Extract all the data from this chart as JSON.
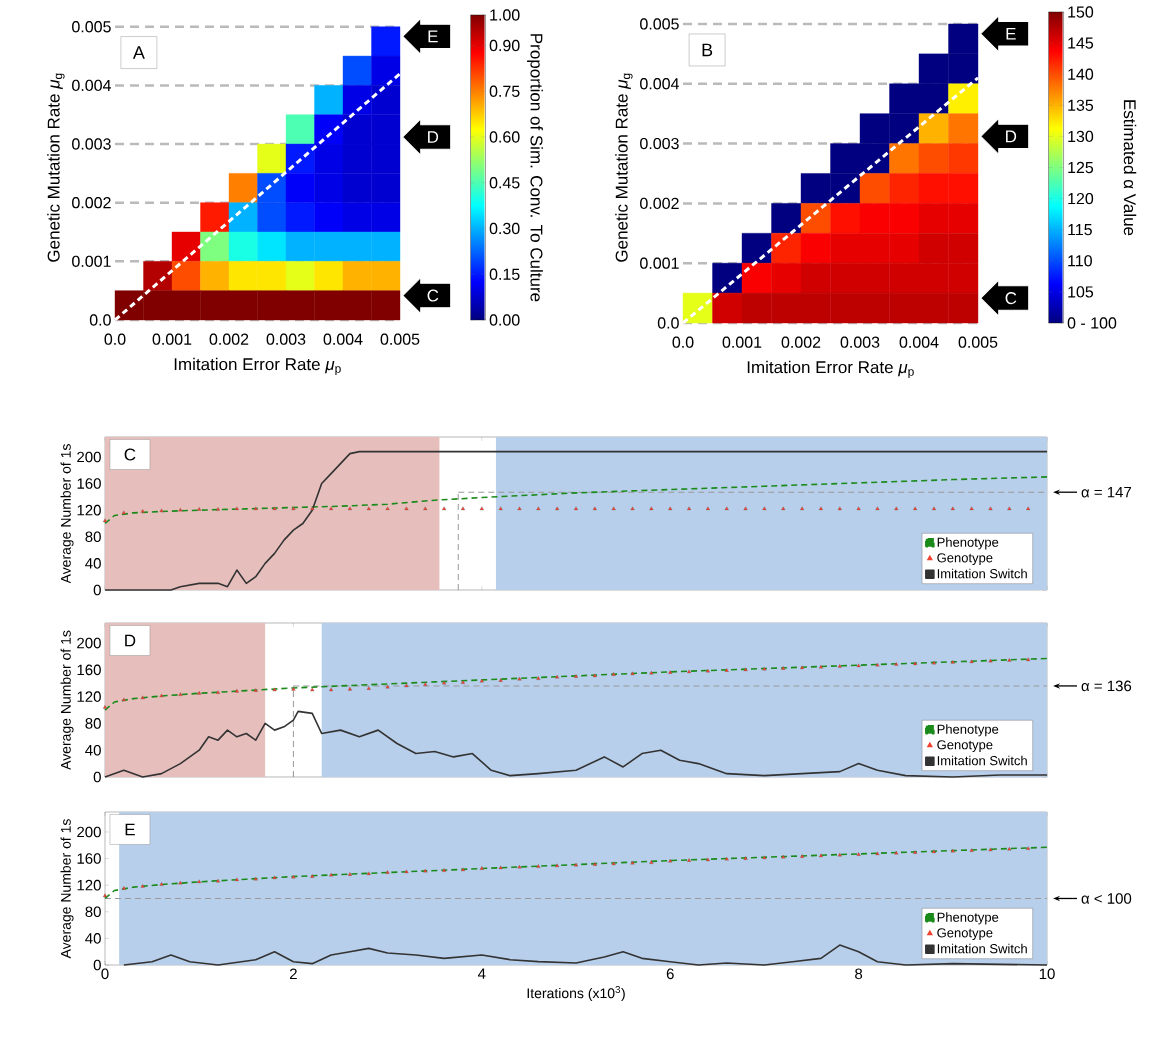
{
  "chart_data": [
    {
      "type": "heatmap",
      "title": "A",
      "xlabel": "Imitation Error Rate *μ*$_{p}$",
      "ylabel": "Genetic Mutation Rate *μ*$_{g}$",
      "clabel": "Proportion of Sim. Conv. To Culture",
      "xlim": [
        0,
        0.005
      ],
      "ylim": [
        0,
        0.005
      ],
      "xticks": [
        {
          "value": 0,
          "label": "0.0"
        },
        0.001,
        0.002,
        0.003,
        0.004,
        0.005
      ],
      "yticks": [
        {
          "value": 0,
          "label": "0.0"
        },
        0.001,
        0.002,
        0.003,
        0.004,
        0.005
      ],
      "clim": [
        0,
        1
      ],
      "cticks": [
        {
          "value": 0,
          "label": "0.00"
        },
        {
          "value": 0.15,
          "label": "0.15"
        },
        {
          "value": 0.3,
          "label": "0.30"
        },
        {
          "value": 0.45,
          "label": "0.45"
        },
        {
          "value": 0.6,
          "label": "0.60"
        },
        {
          "value": 0.75,
          "label": "0.75"
        },
        {
          "value": 0.9,
          "label": "0.90"
        },
        {
          "value": 1,
          "label": "1.00"
        }
      ],
      "x": [
        0.00025,
        0.00075,
        0.00125,
        0.00175,
        0.00225,
        0.00275,
        0.00325,
        0.00375,
        0.00425,
        0.00475
      ],
      "y": [
        0.00475,
        0.00425,
        0.00375,
        0.00325,
        0.00275,
        0.00225,
        0.00175,
        0.00125,
        0.00075,
        0.00025
      ],
      "cells": [
        [
          null,
          null,
          null,
          null,
          null,
          null,
          null,
          null,
          null,
          0.15
        ],
        [
          null,
          null,
          null,
          null,
          null,
          null,
          null,
          null,
          0.2,
          0.1
        ],
        [
          null,
          null,
          null,
          null,
          null,
          null,
          null,
          0.3,
          0.1,
          0.08
        ],
        [
          null,
          null,
          null,
          null,
          null,
          null,
          0.45,
          0.12,
          0.08,
          0.08
        ],
        [
          null,
          null,
          null,
          null,
          null,
          0.6,
          0.15,
          0.1,
          0.08,
          0.08
        ],
        [
          null,
          null,
          null,
          null,
          0.75,
          0.2,
          0.12,
          0.1,
          0.08,
          0.08
        ],
        [
          null,
          null,
          null,
          0.85,
          0.3,
          0.2,
          0.15,
          0.12,
          0.1,
          0.1
        ],
        [
          null,
          null,
          0.9,
          0.5,
          0.4,
          0.35,
          0.3,
          0.3,
          0.3,
          0.3
        ],
        [
          null,
          0.95,
          0.8,
          0.7,
          0.65,
          0.65,
          0.6,
          0.65,
          0.7,
          0.7
        ],
        [
          1,
          1,
          1,
          1,
          1,
          1,
          1,
          1,
          1,
          1
        ]
      ],
      "series": [
        {
          "type": "line",
          "x": [
            0,
            0.005
          ],
          "values": [
            0,
            0.0042
          ],
          "color": "#ffffff",
          "line_style": "dashed"
        }
      ],
      "grid": "y",
      "annotations": [
        "E",
        "D",
        "C"
      ]
    },
    {
      "type": "heatmap",
      "title": "B",
      "xlabel": "Imitation Error Rate *μ*$_{p}$",
      "ylabel": "Genetic Mutation Rate *μ*$_{g}$",
      "clabel": "Estimated α Value",
      "xlim": [
        0,
        0.005
      ],
      "ylim": [
        0,
        0.005
      ],
      "xticks": [
        {
          "value": 0,
          "label": "0.0"
        },
        0.001,
        0.002,
        0.003,
        0.004,
        0.005
      ],
      "yticks": [
        {
          "value": 0,
          "label": "0.0"
        },
        0.001,
        0.002,
        0.003,
        0.004,
        0.005
      ],
      "clim": [
        100,
        150
      ],
      "cticks": [
        {
          "value": 100,
          "label": "0 - 100"
        },
        105,
        110,
        115,
        120,
        125,
        130,
        135,
        140,
        145,
        150
      ],
      "x": [
        0.00025,
        0.00075,
        0.00125,
        0.00175,
        0.00225,
        0.00275,
        0.00325,
        0.00375,
        0.00425,
        0.00475
      ],
      "y": [
        0.00475,
        0.00425,
        0.00375,
        0.00325,
        0.00275,
        0.00225,
        0.00175,
        0.00125,
        0.00075,
        0.00025
      ],
      "cells": [
        [
          null,
          null,
          null,
          null,
          null,
          null,
          null,
          null,
          null,
          100
        ],
        [
          null,
          null,
          null,
          null,
          null,
          null,
          null,
          null,
          100,
          100
        ],
        [
          null,
          null,
          null,
          null,
          null,
          null,
          null,
          100,
          100,
          132
        ],
        [
          null,
          null,
          null,
          null,
          null,
          null,
          100,
          100,
          135,
          138
        ],
        [
          null,
          null,
          null,
          null,
          null,
          100,
          100,
          138,
          140,
          141
        ],
        [
          null,
          null,
          null,
          null,
          100,
          100,
          140,
          142,
          143,
          143
        ],
        [
          null,
          null,
          null,
          100,
          140,
          143,
          144,
          144,
          145,
          145
        ],
        [
          null,
          null,
          100,
          142,
          144,
          145,
          145,
          145,
          146,
          146
        ],
        [
          null,
          100,
          144,
          145,
          146,
          146,
          146,
          146,
          146,
          146
        ],
        [
          130,
          146,
          147,
          147,
          147,
          147,
          147,
          147,
          147,
          147
        ]
      ],
      "series": [
        {
          "type": "line",
          "x": [
            0,
            0.005
          ],
          "values": [
            0,
            0.0041
          ],
          "color": "#ffffff",
          "line_style": "dashed"
        }
      ],
      "grid": "y",
      "annotations": [
        "E",
        "D",
        "C"
      ]
    },
    {
      "type": "line",
      "title": "C",
      "ylabel": "Average Number of 1s",
      "xlim": [
        0,
        10
      ],
      "ylim": [
        0,
        230
      ],
      "xticks": [
        0,
        2,
        4,
        6,
        8,
        10
      ],
      "yticks": [
        0,
        40,
        80,
        120,
        160,
        200
      ],
      "tick_labels": "y",
      "legend": "bottom right",
      "bands": [
        {
          "axis": "x",
          "from": 0,
          "to": 3.55,
          "color": "#e6bfbd"
        },
        {
          "axis": "x",
          "from": 4.15,
          "to": 10,
          "color": "#b8cfeb"
        }
      ],
      "ref_lines": [
        {
          "axis": "y",
          "value": 147,
          "label": "α = 147",
          "color": "#999999",
          "line_style": "dashed"
        },
        {
          "axis": "x",
          "value": 3.75,
          "color": "#999999",
          "line_style": "dashed"
        }
      ],
      "series": [
        {
          "name": "Phenotype",
          "type": "line",
          "color": "#1a8a1a",
          "line_style": "dashed",
          "x": [
            0,
            0.1,
            0.3,
            0.6,
            1,
            1.5,
            2,
            2.5,
            3,
            3.5,
            4,
            5,
            6,
            7,
            8,
            9,
            10
          ],
          "values": [
            100,
            112,
            116,
            118,
            120,
            122,
            124,
            126,
            129,
            135,
            139,
            146,
            151,
            156,
            161,
            166,
            170
          ]
        },
        {
          "name": "Genotype",
          "type": "scatter",
          "marker": "triangle",
          "color": "#f0402f",
          "x": [
            0,
            0.2,
            0.4,
            0.6,
            0.8,
            1,
            1.2,
            1.4,
            1.6,
            1.8,
            2,
            2.2,
            2.4,
            2.6,
            2.8,
            3,
            3.2,
            3.4,
            3.6,
            3.8,
            4,
            4.2,
            4.4,
            4.6,
            4.8,
            5,
            5.2,
            5.4,
            5.6,
            5.8,
            6,
            6.2,
            6.4,
            6.6,
            6.8,
            7,
            7.2,
            7.4,
            7.6,
            7.8,
            8,
            8.2,
            8.4,
            8.6,
            8.8,
            9,
            9.2,
            9.4,
            9.6,
            9.8
          ],
          "values": [
            104,
            116,
            118,
            119,
            120,
            121,
            121,
            122,
            122,
            122,
            122,
            122,
            122,
            122,
            122,
            122,
            122,
            122,
            122,
            122,
            122,
            122,
            122,
            122,
            122,
            122,
            122,
            122,
            122,
            122,
            122,
            122,
            122,
            122,
            122,
            122,
            122,
            122,
            122,
            122,
            122,
            122,
            122,
            122,
            122,
            122,
            122,
            122,
            122,
            122
          ]
        },
        {
          "name": "Imitation Switch",
          "type": "line",
          "color": "#333333",
          "line_style": "solid",
          "x": [
            0,
            0.7,
            0.8,
            1.0,
            1.2,
            1.3,
            1.4,
            1.5,
            1.6,
            1.7,
            1.8,
            1.9,
            2.0,
            2.1,
            2.2,
            2.3,
            2.4,
            2.5,
            2.6,
            2.7,
            10
          ],
          "values": [
            0,
            0,
            5,
            10,
            10,
            5,
            30,
            10,
            20,
            40,
            55,
            75,
            90,
            100,
            120,
            160,
            175,
            190,
            205,
            208,
            208
          ]
        }
      ]
    },
    {
      "type": "line",
      "title": "D",
      "ylabel": "Average Number of 1s",
      "xlim": [
        0,
        10
      ],
      "ylim": [
        0,
        230
      ],
      "xticks": [
        0,
        2,
        4,
        6,
        8,
        10
      ],
      "yticks": [
        0,
        40,
        80,
        120,
        160,
        200
      ],
      "tick_labels": "y",
      "legend": "bottom right",
      "bands": [
        {
          "axis": "x",
          "from": 0,
          "to": 1.7,
          "color": "#e6bfbd"
        },
        {
          "axis": "x",
          "from": 2.3,
          "to": 10,
          "color": "#b8cfeb"
        }
      ],
      "ref_lines": [
        {
          "axis": "y",
          "value": 136,
          "label": "α = 136",
          "color": "#999999",
          "line_style": "dashed"
        },
        {
          "axis": "x",
          "value": 2.0,
          "color": "#999999",
          "line_style": "dashed"
        }
      ],
      "series": [
        {
          "name": "Phenotype",
          "type": "line",
          "color": "#1a8a1a",
          "line_style": "dashed",
          "x": [
            0,
            0.1,
            0.3,
            0.6,
            1,
            1.5,
            2,
            2.5,
            3,
            3.5,
            4,
            5,
            6,
            7,
            8,
            9,
            10
          ],
          "values": [
            100,
            112,
            117,
            121,
            125,
            129,
            133,
            136,
            139,
            142,
            145,
            151,
            157,
            162,
            167,
            172,
            177
          ]
        },
        {
          "name": "Genotype",
          "type": "scatter",
          "marker": "triangle",
          "color": "#f0402f",
          "x": [
            0,
            0.2,
            0.4,
            0.6,
            0.8,
            1,
            1.2,
            1.4,
            1.6,
            1.8,
            2,
            2.2,
            2.4,
            2.6,
            2.8,
            3,
            3.2,
            3.4,
            3.6,
            3.8,
            4,
            4.2,
            4.4,
            4.6,
            4.8,
            5,
            5.2,
            5.4,
            5.6,
            5.8,
            6,
            6.2,
            6.4,
            6.6,
            6.8,
            7,
            7.2,
            7.4,
            7.6,
            7.8,
            8,
            8.2,
            8.4,
            8.6,
            8.8,
            9,
            9.2,
            9.4,
            9.6,
            9.8
          ],
          "values": [
            104,
            115,
            118,
            121,
            123,
            125,
            126,
            128,
            129,
            130,
            131,
            130,
            130,
            131,
            132,
            134,
            136,
            138,
            140,
            141,
            143,
            144,
            146,
            147,
            149,
            150,
            151,
            153,
            154,
            155,
            156,
            157,
            158,
            159,
            160,
            161,
            162,
            163,
            164,
            165,
            166,
            167,
            168,
            169,
            170,
            171,
            172,
            173,
            174,
            175
          ]
        },
        {
          "name": "Imitation Switch",
          "type": "line",
          "color": "#333333",
          "line_style": "solid",
          "x": [
            0,
            0.2,
            0.4,
            0.6,
            0.8,
            1.0,
            1.1,
            1.2,
            1.3,
            1.4,
            1.5,
            1.6,
            1.7,
            1.8,
            1.9,
            2.0,
            2.05,
            2.2,
            2.3,
            2.5,
            2.7,
            2.9,
            3.1,
            3.3,
            3.5,
            3.7,
            3.9,
            4.1,
            4.3,
            4.6,
            5.0,
            5.3,
            5.5,
            5.7,
            5.9,
            6.1,
            6.3,
            6.6,
            7.0,
            7.4,
            7.8,
            8.0,
            8.2,
            8.5,
            9.0,
            9.5,
            10
          ],
          "values": [
            0,
            10,
            0,
            5,
            20,
            40,
            60,
            55,
            70,
            60,
            65,
            55,
            80,
            70,
            75,
            85,
            98,
            95,
            65,
            70,
            60,
            70,
            50,
            35,
            38,
            30,
            35,
            10,
            2,
            5,
            10,
            30,
            15,
            35,
            40,
            25,
            20,
            5,
            2,
            5,
            8,
            20,
            10,
            2,
            0,
            3,
            3
          ]
        }
      ]
    },
    {
      "type": "line",
      "title": "E",
      "xlabel": "Iterations (x10$^{3}$)",
      "ylabel": "Average Number of 1s",
      "xlim": [
        0,
        10
      ],
      "ylim": [
        0,
        230
      ],
      "xticks": [
        0,
        2,
        4,
        6,
        8,
        10
      ],
      "yticks": [
        0,
        40,
        80,
        120,
        160,
        200
      ],
      "legend": "bottom right",
      "bands": [
        {
          "axis": "x",
          "from": 0.15,
          "to": 10,
          "color": "#b8cfeb"
        }
      ],
      "ref_lines": [
        {
          "axis": "y",
          "value": 100,
          "label": "α < 100",
          "color": "#999999",
          "line_style": "dashed"
        }
      ],
      "series": [
        {
          "name": "Phenotype",
          "type": "line",
          "color": "#1a8a1a",
          "line_style": "dashed",
          "x": [
            0,
            0.1,
            0.3,
            0.6,
            1,
            1.5,
            2,
            2.5,
            3,
            3.5,
            4,
            5,
            6,
            7,
            8,
            9,
            10
          ],
          "values": [
            100,
            112,
            117,
            121,
            125,
            129,
            133,
            136,
            139,
            142,
            145,
            151,
            157,
            162,
            167,
            172,
            177
          ]
        },
        {
          "name": "Genotype",
          "type": "scatter",
          "marker": "triangle",
          "color": "#f0402f",
          "x": [
            0,
            0.2,
            0.4,
            0.6,
            0.8,
            1,
            1.2,
            1.4,
            1.6,
            1.8,
            2,
            2.2,
            2.4,
            2.6,
            2.8,
            3,
            3.2,
            3.4,
            3.6,
            3.8,
            4,
            4.2,
            4.4,
            4.6,
            4.8,
            5,
            5.2,
            5.4,
            5.6,
            5.8,
            6,
            6.2,
            6.4,
            6.6,
            6.8,
            7,
            7.2,
            7.4,
            7.6,
            7.8,
            8,
            8.2,
            8.4,
            8.6,
            8.8,
            9,
            9.2,
            9.4,
            9.6,
            9.8
          ],
          "values": [
            104,
            115,
            118,
            121,
            123,
            125,
            126,
            128,
            129,
            131,
            132,
            133,
            135,
            136,
            137,
            139,
            140,
            141,
            142,
            143,
            145,
            146,
            147,
            148,
            149,
            150,
            151,
            152,
            153,
            154,
            156,
            157,
            158,
            159,
            160,
            161,
            162,
            163,
            164,
            165,
            166,
            167,
            168,
            169,
            170,
            171,
            172,
            173,
            174,
            175
          ]
        },
        {
          "name": "Imitation Switch",
          "type": "line",
          "color": "#333333",
          "line_style": "solid",
          "x": [
            0.2,
            0.5,
            0.7,
            0.9,
            1.2,
            1.6,
            1.8,
            2.0,
            2.2,
            2.4,
            2.6,
            2.8,
            3.0,
            3.3,
            3.6,
            4.0,
            4.3,
            4.6,
            5.0,
            5.3,
            5.5,
            5.7,
            6.0,
            6.3,
            6.6,
            7.0,
            7.3,
            7.6,
            7.8,
            8.0,
            8.2,
            8.5,
            9.0,
            10
          ],
          "values": [
            0,
            5,
            15,
            5,
            0,
            8,
            20,
            5,
            2,
            15,
            20,
            25,
            18,
            15,
            10,
            15,
            8,
            5,
            3,
            12,
            20,
            10,
            5,
            0,
            3,
            0,
            5,
            10,
            30,
            20,
            5,
            0,
            2,
            0
          ]
        }
      ]
    }
  ]
}
